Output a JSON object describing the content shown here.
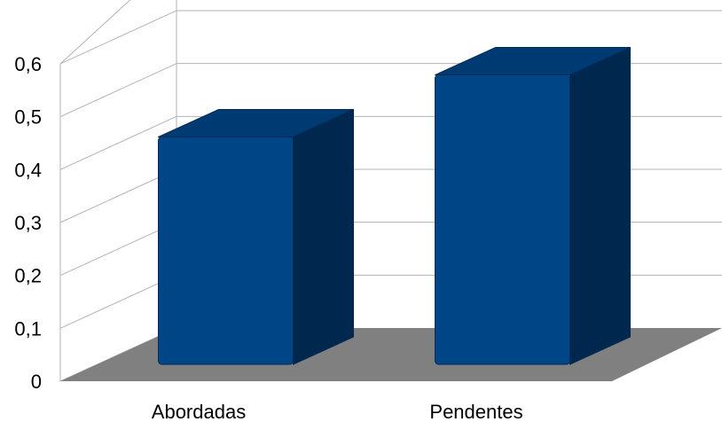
{
  "chart_data": {
    "type": "bar",
    "style": "3d-column",
    "categories": [
      "Abordadas",
      "Pendentes"
    ],
    "values": [
      0.44,
      0.56
    ],
    "yticks": [
      "0",
      "0,1",
      "0,2",
      "0,3",
      "0,4",
      "0,5",
      "0,6"
    ],
    "ylim": [
      0,
      0.6
    ],
    "grid": true,
    "legend": "none",
    "colors": {
      "bar_front": "#004586",
      "bar_top": "#003a72",
      "bar_side": "#00284f",
      "bar_edge": "#002a55",
      "floor": "#808080",
      "grid": "#b3b3b3"
    }
  }
}
